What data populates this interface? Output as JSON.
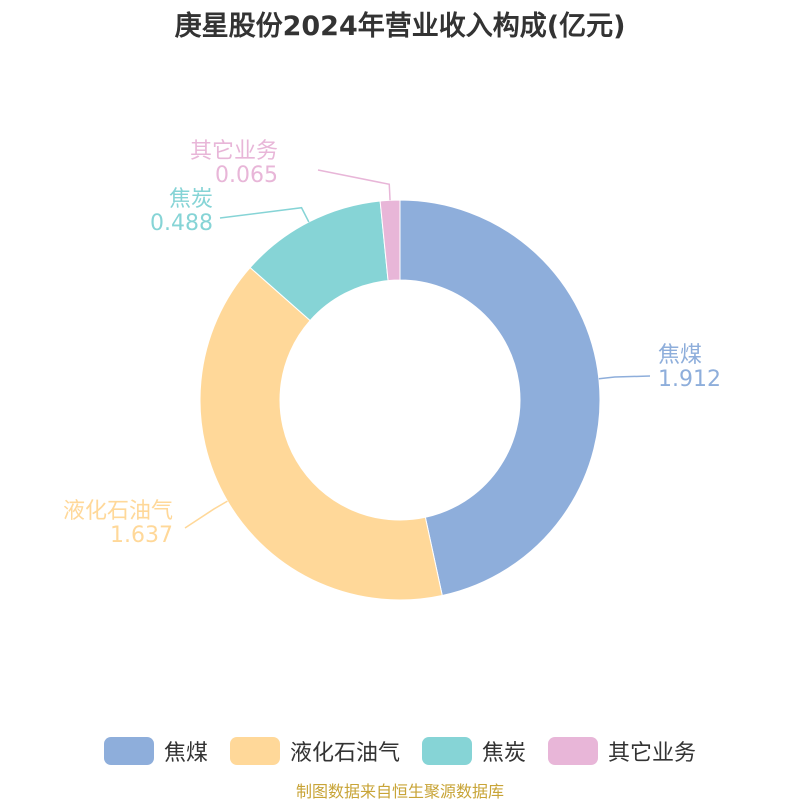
{
  "chart_data": {
    "type": "pie",
    "title": "庚星股份2024年营业收入构成(亿元)",
    "categories": [
      "焦煤",
      "液化石油气",
      "焦炭",
      "其它业务"
    ],
    "values": [
      1.912,
      1.637,
      0.488,
      0.065
    ],
    "value_labels": [
      "1.912",
      "1.637",
      "0.488",
      "0.065"
    ],
    "colors": [
      "#8eaedb",
      "#ffd899",
      "#86d4d6",
      "#e8b6d8"
    ],
    "donut": true,
    "legend_position": "bottom"
  },
  "source_note": "制图数据来自恒生聚源数据库"
}
